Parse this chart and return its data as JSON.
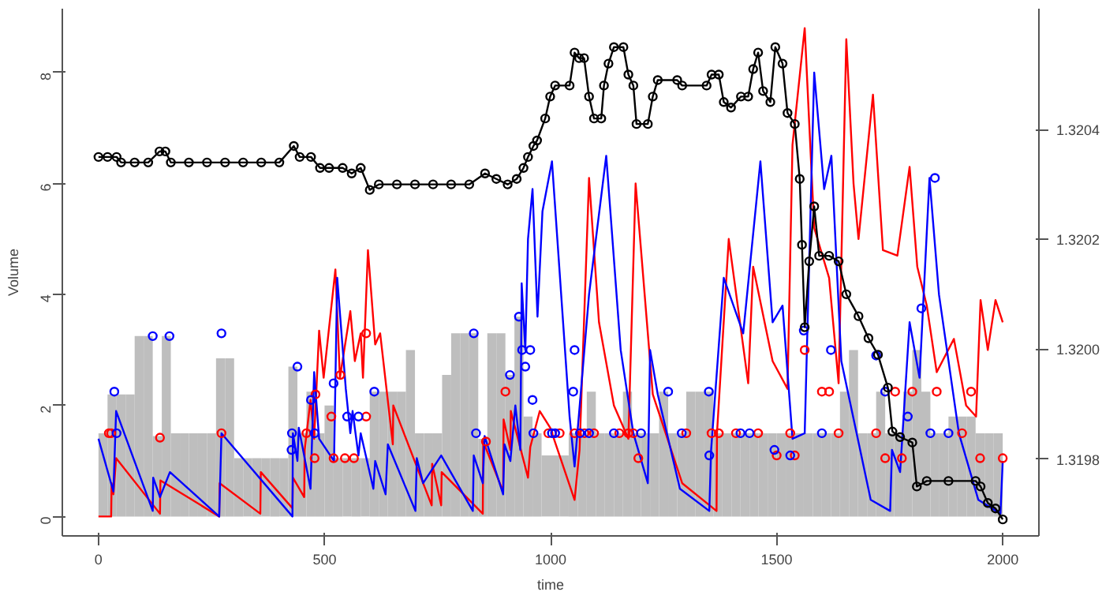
{
  "chart_data": {
    "type": "line",
    "xlabel": "time",
    "ylabel": "Volume",
    "xlim": [
      -80,
      2080
    ],
    "xticks": [
      0,
      500,
      1000,
      1500,
      2000
    ],
    "ylim": [
      -0.35,
      9.15
    ],
    "yticks": [
      0,
      2,
      4,
      6,
      8
    ],
    "y2lim": [
      1.31966,
      1.32062
    ],
    "y2ticks": [
      1.3198,
      {
        "value": 1.32,
        "label": "1.3200"
      },
      1.3202,
      1.3204
    ],
    "series": [
      {
        "type": "bar",
        "color": "#bebebe",
        "x": [
          10,
          30,
          50,
          70,
          90,
          110,
          130,
          150,
          170,
          190,
          210,
          230,
          250,
          270,
          290,
          310,
          330,
          350,
          370,
          390,
          410,
          430,
          450,
          470,
          490,
          510,
          530,
          550,
          570,
          590,
          610,
          630,
          650,
          670,
          690,
          710,
          730,
          750,
          770,
          790,
          810,
          830,
          850,
          870,
          890,
          910,
          930,
          950,
          970,
          990,
          1010,
          1030,
          1050,
          1070,
          1090,
          1110,
          1130,
          1150,
          1170,
          1190,
          1210,
          1230,
          1250,
          1270,
          1290,
          1310,
          1330,
          1350,
          1370,
          1390,
          1410,
          1430,
          1450,
          1470,
          1490,
          1510,
          1530,
          1550,
          1570,
          1590,
          1610,
          1630,
          1650,
          1670,
          1690,
          1710,
          1730,
          1750,
          1770,
          1790,
          1810,
          1830,
          1850,
          1870,
          1890,
          1910,
          1930,
          1950,
          1970,
          1990
        ],
        "values": [
          1.5,
          2.2,
          2.2,
          2.2,
          3.25,
          3.25,
          1.45,
          3.25,
          1.5,
          1.5,
          1.5,
          1.5,
          1.5,
          2.85,
          2.85,
          1.05,
          1.05,
          1.05,
          1.05,
          1.05,
          1.05,
          2.7,
          1.5,
          2.25,
          1.5,
          2.0,
          1.05,
          1.05,
          1.05,
          1.05,
          2.25,
          2.25,
          2.25,
          2.25,
          3.0,
          1.5,
          1.5,
          1.5,
          2.55,
          3.3,
          3.3,
          3.3,
          1.4,
          3.3,
          3.3,
          2.55,
          3.6,
          1.8,
          1.5,
          1.1,
          1.1,
          1.1,
          1.5,
          1.5,
          2.25,
          1.5,
          1.5,
          1.5,
          2.25,
          1.5,
          1.5,
          1.5,
          2.25,
          1.5,
          1.5,
          2.25,
          2.25,
          2.25,
          1.5,
          1.5,
          1.5,
          1.5,
          1.5,
          1.5,
          1.5,
          1.5,
          1.5,
          1.5,
          1.5,
          1.5,
          1.5,
          1.5,
          2.25,
          3.0,
          1.5,
          1.5,
          2.25,
          1.5,
          1.5,
          2.25,
          3.0,
          2.25,
          1.5,
          1.5,
          1.8,
          1.8,
          1.8,
          1.5,
          1.5,
          1.5
        ]
      },
      {
        "color": "#ff0000",
        "x": [
          0,
          28,
          29,
          33,
          39,
          136,
          137,
          267,
          268,
          358,
          359,
          429,
          430,
          455,
          456,
          469,
          477,
          488,
          498,
          524,
          534,
          557,
          567,
          580,
          585,
          596,
          612,
          623,
          651,
          652,
          737,
          738,
          758,
          759,
          850,
          851,
          895,
          896,
          911,
          912,
          950,
          955,
          976,
          999,
          1053,
          1064,
          1085,
          1107,
          1140,
          1172,
          1188,
          1226,
          1291,
          1367,
          1368,
          1394,
          1437,
          1448,
          1491,
          1524,
          1535,
          1562,
          1583,
          1616,
          1637,
          1654,
          1670,
          1681,
          1713,
          1735,
          1767,
          1794,
          1811,
          1832,
          1854,
          1892,
          1919,
          1941,
          1951,
          1967,
          1984,
          2000
        ],
        "values": [
          0,
          0,
          0.6,
          0.4,
          1.05,
          0.05,
          0.65,
          0.0,
          0.6,
          0.05,
          0.8,
          0.15,
          0.7,
          0.35,
          1.2,
          2.1,
          1.4,
          3.35,
          2.5,
          4.45,
          2.5,
          3.7,
          2.8,
          3.3,
          2.5,
          4.8,
          3.1,
          3.3,
          1.3,
          2.0,
          0.2,
          0.95,
          0.2,
          0.8,
          0.05,
          1.35,
          0.45,
          1.75,
          1.2,
          1.9,
          0.7,
          1.25,
          1.9,
          1.6,
          0.3,
          1.2,
          6.1,
          3.5,
          2.0,
          1.4,
          6.0,
          2.2,
          0.6,
          0.1,
          1.5,
          5.0,
          2.4,
          4.5,
          2.8,
          2.3,
          6.7,
          8.8,
          5.2,
          4.3,
          2.4,
          8.6,
          6.0,
          5.0,
          7.6,
          4.8,
          4.7,
          6.3,
          4.5,
          3.8,
          2.6,
          3.2,
          2.0,
          1.8,
          3.9,
          3.0,
          3.9,
          3.5
        ]
      },
      {
        "color": "#0000ff",
        "x": [
          0,
          33,
          39,
          120,
          121,
          136,
          158,
          267,
          272,
          429,
          430,
          440,
          443,
          469,
          477,
          488,
          521,
          528,
          547,
          557,
          562,
          575,
          580,
          608,
          612,
          635,
          640,
          701,
          704,
          718,
          758,
          828,
          830,
          850,
          854,
          895,
          898,
          911,
          922,
          933,
          936,
          944,
          950,
          960,
          971,
          982,
          1003,
          1042,
          1053,
          1085,
          1123,
          1155,
          1183,
          1215,
          1220,
          1237,
          1286,
          1351,
          1355,
          1383,
          1426,
          1464,
          1491,
          1513,
          1535,
          1562,
          1583,
          1605,
          1621,
          1643,
          1708,
          1751,
          1755,
          1773,
          1794,
          1816,
          1838,
          1859,
          1903,
          1946,
          1995,
          2000
        ],
        "values": [
          1.4,
          0.45,
          1.9,
          0.1,
          0.7,
          0.35,
          0.8,
          0.0,
          1.5,
          0.0,
          1.5,
          1.0,
          1.6,
          0.5,
          2.6,
          1.4,
          1.0,
          4.3,
          2.3,
          1.5,
          1.9,
          1.1,
          1.5,
          0.5,
          1.0,
          0.4,
          1.3,
          0.1,
          1.05,
          0.6,
          1.1,
          0.1,
          1.1,
          0.6,
          1.45,
          0.4,
          1.3,
          1.0,
          2.0,
          1.2,
          4.2,
          3.0,
          5.0,
          5.9,
          3.6,
          5.5,
          6.4,
          1.8,
          0.9,
          4.0,
          6.5,
          3.0,
          1.5,
          0.6,
          3.0,
          2.2,
          0.5,
          0.1,
          1.2,
          4.3,
          3.3,
          6.4,
          3.5,
          3.8,
          1.4,
          1.5,
          8.0,
          5.9,
          6.5,
          2.8,
          0.3,
          0.1,
          1.2,
          0.8,
          3.5,
          2.5,
          6.1,
          4.0,
          1.5,
          0.3,
          0.05,
          1.0
        ]
      },
      {
        "type": "scatter",
        "marker": "circle",
        "color": "#ff0000",
        "x": [
          23,
          28,
          136,
          272,
          460,
          478,
          480,
          515,
          520,
          535,
          545,
          565,
          592,
          592,
          857,
          900,
          995,
          1020,
          1053,
          1075,
          1096,
          1152,
          1172,
          1183,
          1194,
          1300,
          1356,
          1372,
          1410,
          1459,
          1500,
          1530,
          1540,
          1562,
          1600,
          1616,
          1637,
          1720,
          1740,
          1762,
          1777,
          1800,
          1854,
          1910,
          1930,
          1950,
          2000
        ],
        "values": [
          1.5,
          1.5,
          1.42,
          1.5,
          1.5,
          1.05,
          2.2,
          1.8,
          1.05,
          2.55,
          1.05,
          1.05,
          3.3,
          1.8,
          1.35,
          2.25,
          1.5,
          1.5,
          1.5,
          1.5,
          1.5,
          1.5,
          1.5,
          1.5,
          1.05,
          1.5,
          1.5,
          1.5,
          1.5,
          1.5,
          1.1,
          1.5,
          1.1,
          3.0,
          2.25,
          2.25,
          1.5,
          1.5,
          1.05,
          2.25,
          1.05,
          2.25,
          2.25,
          1.5,
          2.25,
          1.05,
          1.05
        ]
      },
      {
        "type": "scatter",
        "marker": "circle",
        "color": "#0000ff",
        "x": [
          35,
          40,
          120,
          157,
          272,
          427,
          428,
          440,
          470,
          478,
          520,
          550,
          575,
          610,
          830,
          835,
          910,
          930,
          937,
          944,
          955,
          960,
          962,
          1003,
          1010,
          1050,
          1053,
          1065,
          1085,
          1140,
          1200,
          1260,
          1290,
          1350,
          1351,
          1420,
          1440,
          1495,
          1530,
          1560,
          1600,
          1620,
          1720,
          1740,
          1790,
          1820,
          1840,
          1850,
          1880
        ],
        "values": [
          2.25,
          1.5,
          3.25,
          3.25,
          3.3,
          1.2,
          1.5,
          2.7,
          2.1,
          1.5,
          2.4,
          1.8,
          1.8,
          2.25,
          3.3,
          1.5,
          2.55,
          3.6,
          3.0,
          2.7,
          3.0,
          2.1,
          1.5,
          1.5,
          1.5,
          2.25,
          3.0,
          1.5,
          1.5,
          1.5,
          1.5,
          2.25,
          1.5,
          2.25,
          1.1,
          1.5,
          1.5,
          1.2,
          1.1,
          3.35,
          1.5,
          3.0,
          2.9,
          2.25,
          1.8,
          3.75,
          1.5,
          6.1,
          1.5
        ]
      },
      {
        "type": "line",
        "marker": "circle",
        "axis": "y2",
        "color": "#000000",
        "x": [
          0,
          20,
          40,
          50,
          80,
          110,
          135,
          148,
          160,
          200,
          240,
          280,
          320,
          360,
          400,
          432,
          445,
          470,
          490,
          510,
          540,
          560,
          580,
          600,
          620,
          660,
          700,
          740,
          780,
          820,
          855,
          880,
          905,
          925,
          940,
          950,
          962,
          970,
          988,
          999,
          1010,
          1042,
          1053,
          1063,
          1074,
          1085,
          1096,
          1112,
          1118,
          1128,
          1140,
          1161,
          1172,
          1183,
          1190,
          1215,
          1226,
          1237,
          1280,
          1291,
          1345,
          1356,
          1372,
          1383,
          1399,
          1421,
          1437,
          1448,
          1459,
          1470,
          1486,
          1497,
          1513,
          1524,
          1540,
          1551,
          1556,
          1562,
          1572,
          1583,
          1594,
          1616,
          1637,
          1654,
          1681,
          1703,
          1724,
          1746,
          1756,
          1773,
          1800,
          1810,
          1832,
          1880,
          1940,
          1951,
          1967,
          1984,
          2000
        ],
        "values": [
          1.32035,
          1.32035,
          1.32035,
          1.32034,
          1.32034,
          1.32034,
          1.32036,
          1.32036,
          1.32034,
          1.32034,
          1.32034,
          1.32034,
          1.32034,
          1.32034,
          1.32034,
          1.32037,
          1.32035,
          1.32035,
          1.32033,
          1.32033,
          1.32033,
          1.32032,
          1.32033,
          1.32029,
          1.3203,
          1.3203,
          1.3203,
          1.3203,
          1.3203,
          1.3203,
          1.32032,
          1.32031,
          1.3203,
          1.32031,
          1.32033,
          1.32035,
          1.32037,
          1.32038,
          1.32042,
          1.32046,
          1.32048,
          1.32048,
          1.32054,
          1.32053,
          1.32053,
          1.32046,
          1.32042,
          1.32042,
          1.32048,
          1.32052,
          1.32055,
          1.32055,
          1.3205,
          1.32048,
          1.32041,
          1.32041,
          1.32046,
          1.32049,
          1.32049,
          1.32048,
          1.32048,
          1.3205,
          1.3205,
          1.32045,
          1.32044,
          1.32046,
          1.32046,
          1.32051,
          1.32054,
          1.32047,
          1.32045,
          1.32055,
          1.32052,
          1.32043,
          1.32041,
          1.32031,
          1.32019,
          1.32004,
          1.32016,
          1.32026,
          1.32017,
          1.32017,
          1.32016,
          1.3201,
          1.32006,
          1.32002,
          1.31999,
          1.31993,
          1.31985,
          1.31984,
          1.31983,
          1.31975,
          1.31976,
          1.31976,
          1.31976,
          1.31975,
          1.31972,
          1.31971,
          1.31969
        ]
      }
    ]
  }
}
